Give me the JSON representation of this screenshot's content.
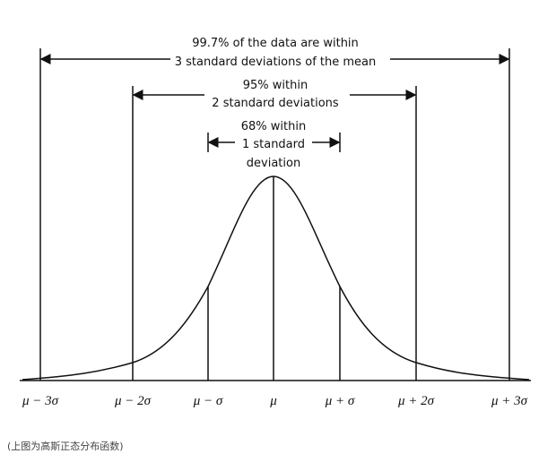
{
  "annotations": [
    {
      "lines": [
        "99.7% of the data are within",
        "3 standard deviations of the mean"
      ]
    },
    {
      "lines": [
        "95% within",
        "2 standard deviations"
      ]
    },
    {
      "lines": [
        "68% within",
        "1 standard",
        "deviation"
      ]
    }
  ],
  "axis_labels": [
    "μ − 3σ",
    "μ − 2σ",
    "μ − σ",
    "μ",
    "μ + σ",
    "μ + 2σ",
    "μ + 3σ"
  ],
  "caption": "(上图为高斯正态分布函数)"
}
